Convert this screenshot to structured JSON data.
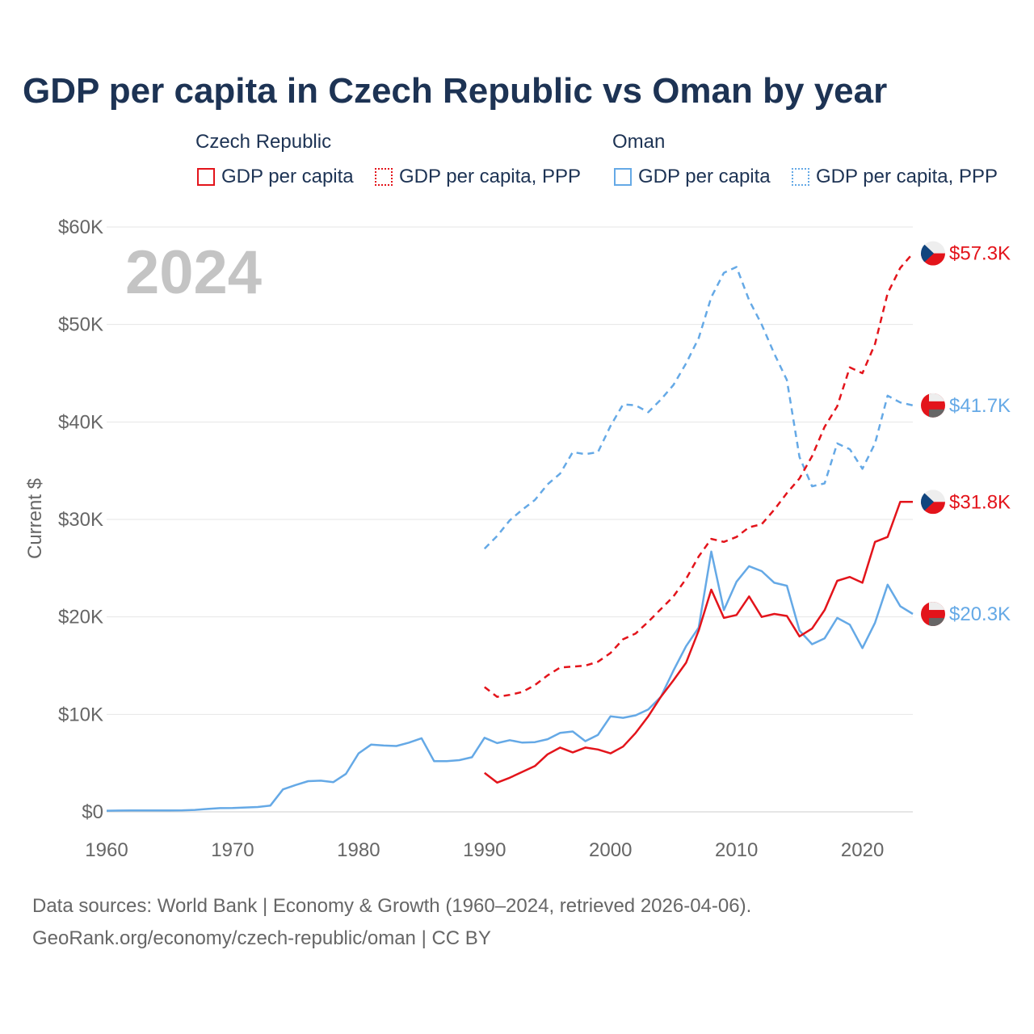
{
  "title": "GDP per capita in Czech Republic vs Oman by year",
  "legend": {
    "groups": [
      {
        "name": "Czech Republic",
        "items": [
          {
            "label": "GDP per capita",
            "style": "solid",
            "color": "#e3141b"
          },
          {
            "label": "GDP per capita, PPP",
            "style": "dotted",
            "color": "#e3141b"
          }
        ]
      },
      {
        "name": "Oman",
        "items": [
          {
            "label": "GDP per capita",
            "style": "solid",
            "color": "#65a9e6"
          },
          {
            "label": "GDP per capita, PPP",
            "style": "dotted",
            "color": "#65a9e6"
          }
        ]
      }
    ]
  },
  "year_watermark": "2024",
  "colors": {
    "czech": "#e3141b",
    "oman": "#65a9e6",
    "title": "#1d3354",
    "axis_text": "#666666",
    "grid": "#e6e6e6",
    "watermark": "#c4c4c4"
  },
  "source": {
    "line1": "Data sources: World Bank | Economy & Growth (1960–2024, retrieved 2026-04-06).",
    "line2": "GeoRank.org/economy/czech-republic/oman | CC BY"
  },
  "end_labels": [
    {
      "text": "$57.3K",
      "series": "czech_ppp",
      "country": "czech"
    },
    {
      "text": "$41.7K",
      "series": "oman_ppp",
      "country": "oman"
    },
    {
      "text": "$31.8K",
      "series": "czech_gdp",
      "country": "czech"
    },
    {
      "text": "$20.3K",
      "series": "oman_gdp",
      "country": "oman"
    }
  ],
  "chart_data": {
    "type": "line",
    "title": "GDP per capita in Czech Republic vs Oman by year",
    "xlabel": "",
    "ylabel": "Current $",
    "xlim": [
      1960,
      2024
    ],
    "ylim": [
      0,
      60000
    ],
    "x_ticks": [
      1960,
      1970,
      1980,
      1990,
      2000,
      2010,
      2020
    ],
    "x_tick_labels": [
      "1960",
      "1970",
      "1980",
      "1990",
      "2000",
      "2010",
      "2020"
    ],
    "y_ticks": [
      0,
      10000,
      20000,
      30000,
      40000,
      50000,
      60000
    ],
    "y_tick_labels": [
      "$0",
      "$10K",
      "$20K",
      "$30K",
      "$40K",
      "$50K",
      "$60K"
    ],
    "grid": true,
    "series": [
      {
        "id": "oman_gdp",
        "name": "Oman GDP per capita",
        "color": "#65a9e6",
        "dash": "solid",
        "start_year": 1960,
        "values": [
          120,
          130,
          140,
          140,
          145,
          150,
          160,
          200,
          300,
          380,
          400,
          450,
          500,
          650,
          2300,
          2750,
          3150,
          3200,
          3050,
          3900,
          6000,
          6900,
          6800,
          6750,
          7100,
          7550,
          5200,
          5200,
          5300,
          5600,
          7600,
          7050,
          7350,
          7100,
          7150,
          7450,
          8100,
          8250,
          7250,
          7900,
          9800,
          9650,
          9900,
          10500,
          11800,
          14500,
          17000,
          18900,
          26700,
          20700,
          23600,
          25200,
          24700,
          23500,
          23200,
          18600,
          17200,
          17800,
          19900,
          19200,
          16800,
          19400,
          23300,
          21100,
          20300
        ]
      },
      {
        "id": "oman_ppp",
        "name": "Oman GDP per capita, PPP",
        "color": "#65a9e6",
        "dash": "dashed",
        "start_year": 1990,
        "values": [
          27000,
          28300,
          29900,
          31000,
          32000,
          33600,
          34700,
          36900,
          36700,
          36900,
          39600,
          41800,
          41700,
          41000,
          42300,
          43800,
          46000,
          48600,
          52800,
          55300,
          55900,
          52500,
          50000,
          47000,
          44300,
          36400,
          33400,
          33700,
          37800,
          37200,
          35200,
          37800,
          42700,
          42000,
          41700
        ]
      },
      {
        "id": "czech_gdp",
        "name": "Czech Republic GDP per capita",
        "color": "#e3141b",
        "dash": "solid",
        "start_year": 1990,
        "values": [
          4000,
          3000,
          3500,
          4100,
          4700,
          5900,
          6600,
          6100,
          6600,
          6400,
          6000,
          6700,
          8100,
          9800,
          11800,
          13500,
          15300,
          18600,
          22800,
          19900,
          20200,
          22100,
          20000,
          20300,
          20100,
          18000,
          18800,
          20700,
          23700,
          24100,
          23500,
          27700,
          28200,
          31800,
          31800
        ]
      },
      {
        "id": "czech_ppp",
        "name": "Czech Republic GDP per capita, PPP",
        "color": "#e3141b",
        "dash": "dashed",
        "start_year": 1990,
        "values": [
          12800,
          11800,
          12000,
          12300,
          13000,
          14000,
          14800,
          14900,
          15000,
          15400,
          16300,
          17700,
          18300,
          19500,
          20800,
          22100,
          23900,
          26200,
          28000,
          27700,
          28200,
          29200,
          29500,
          31000,
          32700,
          34200,
          36500,
          39500,
          41600,
          45600,
          45000,
          48000,
          53200,
          55800,
          57300
        ]
      }
    ]
  }
}
